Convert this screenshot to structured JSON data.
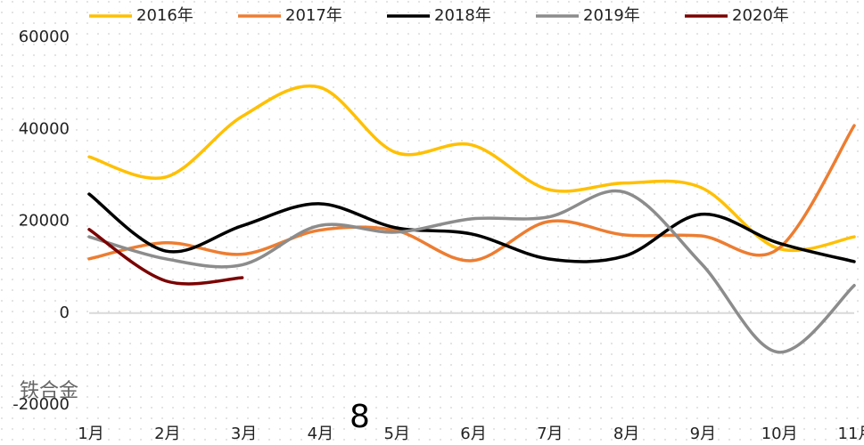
{
  "chart_data": {
    "type": "line",
    "categories": [
      "1月",
      "2月",
      "3月",
      "4月",
      "5月",
      "6月",
      "7月",
      "8月",
      "9月",
      "10月",
      "11月"
    ],
    "series": [
      {
        "name": "2016年",
        "color": "#FFC000",
        "values": [
          34000,
          29600,
          42800,
          49200,
          35000,
          36600,
          26900,
          28300,
          27300,
          14100,
          16600
        ]
      },
      {
        "name": "2017年",
        "color": "#ED7D31",
        "values": [
          11800,
          15300,
          12800,
          18000,
          18000,
          11400,
          19900,
          17000,
          16800,
          13900,
          40800
        ]
      },
      {
        "name": "2018年",
        "color": "#000000",
        "values": [
          25900,
          13500,
          19000,
          23800,
          18600,
          17200,
          11800,
          12400,
          21500,
          15300,
          11200
        ]
      },
      {
        "name": "2019年",
        "color": "#8C8C8C",
        "values": [
          16600,
          11800,
          10500,
          19000,
          17600,
          20500,
          20900,
          26300,
          10800,
          -8500,
          6000
        ]
      },
      {
        "name": "2020年",
        "color": "#7B0000",
        "values": [
          18200,
          7000,
          7700,
          null,
          null,
          null,
          null,
          null,
          null,
          null,
          null
        ]
      }
    ],
    "ylim": [
      -20000,
      60000
    ],
    "yticks": [
      -20000,
      0,
      20000,
      40000,
      60000
    ],
    "annotations": [
      "铁合金",
      "8"
    ],
    "legend": "top"
  }
}
